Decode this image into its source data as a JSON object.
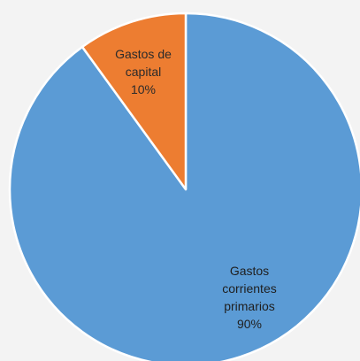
{
  "chart_data": {
    "type": "pie",
    "title": "",
    "slices": [
      {
        "label_lines": [
          "Gastos",
          "corrientes",
          "primarios",
          "90%"
        ],
        "value": 90,
        "color": "#5b9bd5",
        "label_color": "#1f1f1f"
      },
      {
        "label_lines": [
          "Gastos de",
          "capital",
          "10%"
        ],
        "value": 10,
        "color": "#ed7d31",
        "label_color": "#2b2b2b"
      }
    ],
    "legend": "none"
  }
}
